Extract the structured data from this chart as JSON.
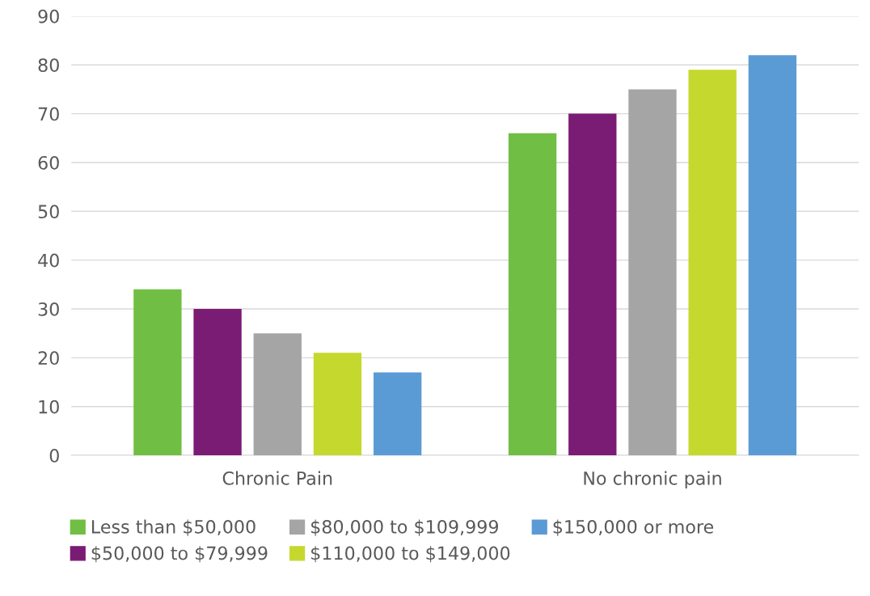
{
  "chart_data": {
    "type": "bar",
    "categories": [
      "Chronic Pain",
      "No chronic pain"
    ],
    "series": [
      {
        "name": "Less than $50,000",
        "color": "#70bf44",
        "values": [
          34,
          66
        ]
      },
      {
        "name": "$50,000 to $79,999",
        "color": "#7b1c74",
        "values": [
          30,
          70
        ]
      },
      {
        "name": "$80,000 to $109,999",
        "color": "#a5a5a5",
        "values": [
          25,
          75
        ]
      },
      {
        "name": "$110,000 to $149,000",
        "color": "#c5d82e",
        "values": [
          21,
          79
        ]
      },
      {
        "name": "$150,000 or more",
        "color": "#5b9bd5",
        "values": [
          17,
          82
        ]
      }
    ],
    "ylim": [
      0,
      90
    ],
    "yticks": [
      0,
      10,
      20,
      30,
      40,
      50,
      60,
      70,
      80,
      90
    ],
    "grid": "y",
    "legend": "bottom"
  }
}
